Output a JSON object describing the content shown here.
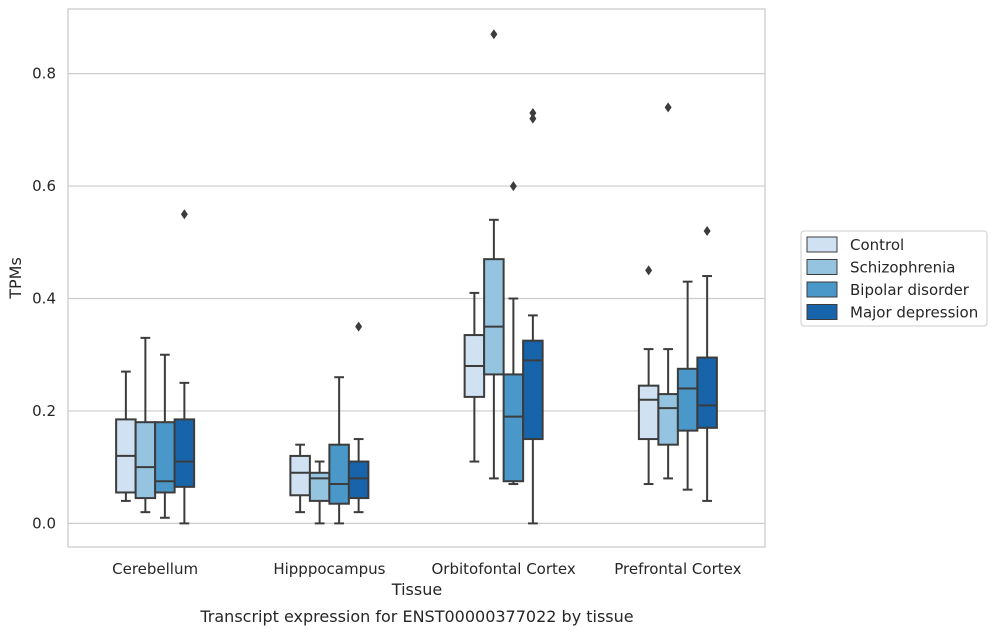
{
  "chart_data": {
    "type": "box",
    "caption": "Transcript expression for ENST00000377022 by tissue",
    "xlabel": "Tissue",
    "ylabel": "TPMs",
    "ylim": [
      -0.042,
      0.915
    ],
    "yticks": [
      0.0,
      0.2,
      0.4,
      0.6,
      0.8
    ],
    "ytick_labels": [
      "0.0",
      "0.2",
      "0.4",
      "0.6",
      "0.8"
    ],
    "grid": "horizontal",
    "legend_position": "right",
    "categories": [
      "Cerebellum",
      "Hipppocampus",
      "Orbitofontal Cortex",
      "Prefrontal Cortex"
    ],
    "series": [
      {
        "name": "Control",
        "color": "#d0e1f2",
        "boxes": [
          {
            "whislo": 0.04,
            "q1": 0.055,
            "med": 0.12,
            "q3": 0.185,
            "whishi": 0.27,
            "fliers": []
          },
          {
            "whislo": 0.02,
            "q1": 0.05,
            "med": 0.09,
            "q3": 0.12,
            "whishi": 0.14,
            "fliers": []
          },
          {
            "whislo": 0.11,
            "q1": 0.225,
            "med": 0.28,
            "q3": 0.335,
            "whishi": 0.41,
            "fliers": []
          },
          {
            "whislo": 0.07,
            "q1": 0.15,
            "med": 0.22,
            "q3": 0.245,
            "whishi": 0.31,
            "fliers": [
              0.45
            ]
          }
        ]
      },
      {
        "name": "Schizophrenia",
        "color": "#94c4df",
        "boxes": [
          {
            "whislo": 0.02,
            "q1": 0.045,
            "med": 0.1,
            "q3": 0.18,
            "whishi": 0.33,
            "fliers": []
          },
          {
            "whislo": 0.0,
            "q1": 0.04,
            "med": 0.08,
            "q3": 0.09,
            "whishi": 0.11,
            "fliers": []
          },
          {
            "whislo": 0.08,
            "q1": 0.265,
            "med": 0.35,
            "q3": 0.47,
            "whishi": 0.54,
            "fliers": [
              0.87
            ]
          },
          {
            "whislo": 0.08,
            "q1": 0.14,
            "med": 0.205,
            "q3": 0.23,
            "whishi": 0.31,
            "fliers": [
              0.74
            ]
          }
        ]
      },
      {
        "name": "Bipolar disorder",
        "color": "#4a98c9",
        "boxes": [
          {
            "whislo": 0.01,
            "q1": 0.055,
            "med": 0.075,
            "q3": 0.18,
            "whishi": 0.3,
            "fliers": []
          },
          {
            "whislo": 0.0,
            "q1": 0.035,
            "med": 0.07,
            "q3": 0.14,
            "whishi": 0.26,
            "fliers": []
          },
          {
            "whislo": 0.07,
            "q1": 0.075,
            "med": 0.19,
            "q3": 0.265,
            "whishi": 0.4,
            "fliers": [
              0.6
            ]
          },
          {
            "whislo": 0.06,
            "q1": 0.165,
            "med": 0.24,
            "q3": 0.275,
            "whishi": 0.43,
            "fliers": []
          }
        ]
      },
      {
        "name": "Major depression",
        "color": "#1764ab",
        "boxes": [
          {
            "whislo": 0.0,
            "q1": 0.065,
            "med": 0.11,
            "q3": 0.185,
            "whishi": 0.25,
            "fliers": [
              0.55
            ]
          },
          {
            "whislo": 0.02,
            "q1": 0.045,
            "med": 0.08,
            "q3": 0.11,
            "whishi": 0.15,
            "fliers": [
              0.35
            ]
          },
          {
            "whislo": 0.0,
            "q1": 0.15,
            "med": 0.29,
            "q3": 0.325,
            "whishi": 0.37,
            "fliers": [
              0.72,
              0.73
            ]
          },
          {
            "whislo": 0.04,
            "q1": 0.17,
            "med": 0.21,
            "q3": 0.295,
            "whishi": 0.44,
            "fliers": [
              0.52
            ]
          }
        ]
      }
    ],
    "colors": {
      "grid": "#cccccc",
      "frame": "#cccccc",
      "box_edge": "#3c3c3c"
    }
  }
}
